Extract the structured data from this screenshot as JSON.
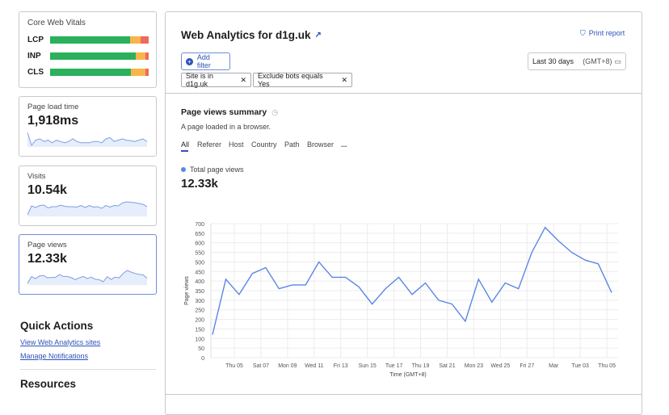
{
  "sidebar": {
    "cwv": {
      "title": "Core Web Vitals",
      "rows": [
        {
          "label": "LCP",
          "good": 81,
          "needs": 11,
          "poor": 8
        },
        {
          "label": "INP",
          "good": 87,
          "needs": 10,
          "poor": 3
        },
        {
          "label": "CLS",
          "good": 82,
          "needs": 15,
          "poor": 3
        }
      ],
      "colors": {
        "good": "#2bb05b",
        "needs": "#f8b54a",
        "poor": "#ee6a5f"
      }
    },
    "metrics": [
      {
        "label": "Page load time",
        "value": "1,918ms",
        "spark": [
          2300,
          1800,
          2000,
          2050,
          1950,
          2000,
          1900,
          2000,
          1950,
          1900,
          1950,
          2050,
          1950,
          1900,
          1900,
          1900,
          1950,
          1950,
          1900,
          2050,
          2100,
          1950,
          2000,
          2050,
          2000,
          1980,
          1950,
          2000,
          2050,
          1950
        ]
      },
      {
        "label": "Visits",
        "value": "10.54k",
        "spark": [
          100,
          320,
          280,
          330,
          340,
          270,
          300,
          300,
          340,
          310,
          300,
          300,
          290,
          330,
          280,
          330,
          290,
          300,
          260,
          330,
          290,
          330,
          320,
          390,
          420,
          410,
          400,
          380,
          360,
          300
        ]
      },
      {
        "label": "Page views",
        "value": "12.33k",
        "spark": [
          120,
          410,
          330,
          440,
          470,
          360,
          380,
          380,
          500,
          420,
          420,
          370,
          280,
          360,
          420,
          330,
          390,
          300,
          280,
          190,
          410,
          290,
          390,
          360,
          550,
          680,
          610,
          550,
          510,
          490,
          340
        ]
      }
    ],
    "quick_actions": {
      "title": "Quick Actions",
      "links": [
        "View Web Analytics sites",
        "Manage Notifications"
      ]
    },
    "resources": {
      "title": "Resources"
    }
  },
  "header": {
    "title": "Web Analytics for d1g.uk",
    "print": "Print report",
    "add_filter": "Add filter",
    "date_range": "Last 30 days",
    "timezone": "(GMT+8)",
    "filters": [
      {
        "field": "Site",
        "op": "is in",
        "value": "d1g.uk"
      },
      {
        "field": "Exclude bots",
        "op": "equals",
        "value": "Yes"
      }
    ]
  },
  "summary": {
    "title": "Page views summary",
    "description": "A page loaded in a browser.",
    "tabs": [
      "All",
      "Referer",
      "Host",
      "Country",
      "Path",
      "Browser",
      "..."
    ],
    "active_tab": "All",
    "legend": "Total page views",
    "total": "12.33k"
  },
  "chart_data": {
    "type": "line",
    "xlabel": "Time (GMT+8)",
    "ylabel": "Page views",
    "ylim": [
      0,
      700
    ],
    "yticks": [
      0,
      50,
      100,
      150,
      200,
      250,
      300,
      350,
      400,
      450,
      500,
      550,
      600,
      650,
      700
    ],
    "xtick_labels": [
      "Thu 05",
      "Sat 07",
      "Mon 09",
      "Wed 11",
      "Fri 13",
      "Sun 15",
      "Tue 17",
      "Thu 19",
      "Sat 21",
      "Mon 23",
      "Wed 25",
      "Fri 27",
      "Mar",
      "Tue 03",
      "Thu 05"
    ],
    "grid": true,
    "color": "#5b86e5",
    "x": [
      "Feb 03",
      "Feb 04",
      "Feb 05",
      "Feb 06",
      "Feb 07",
      "Feb 08",
      "Feb 09",
      "Feb 10",
      "Feb 11",
      "Feb 12",
      "Feb 13",
      "Feb 14",
      "Feb 15",
      "Feb 16",
      "Feb 17",
      "Feb 18",
      "Feb 19",
      "Feb 20",
      "Feb 21",
      "Feb 22",
      "Feb 23",
      "Feb 24",
      "Feb 25",
      "Feb 26",
      "Feb 27",
      "Feb 28",
      "Mar 01",
      "Mar 02",
      "Mar 03",
      "Mar 04",
      "Mar 05"
    ],
    "series": [
      {
        "name": "Total page views",
        "values": [
          120,
          410,
          330,
          440,
          470,
          360,
          380,
          380,
          500,
          420,
          420,
          370,
          280,
          360,
          420,
          330,
          390,
          300,
          280,
          190,
          410,
          290,
          390,
          360,
          550,
          680,
          610,
          550,
          510,
          490,
          340
        ]
      }
    ]
  }
}
